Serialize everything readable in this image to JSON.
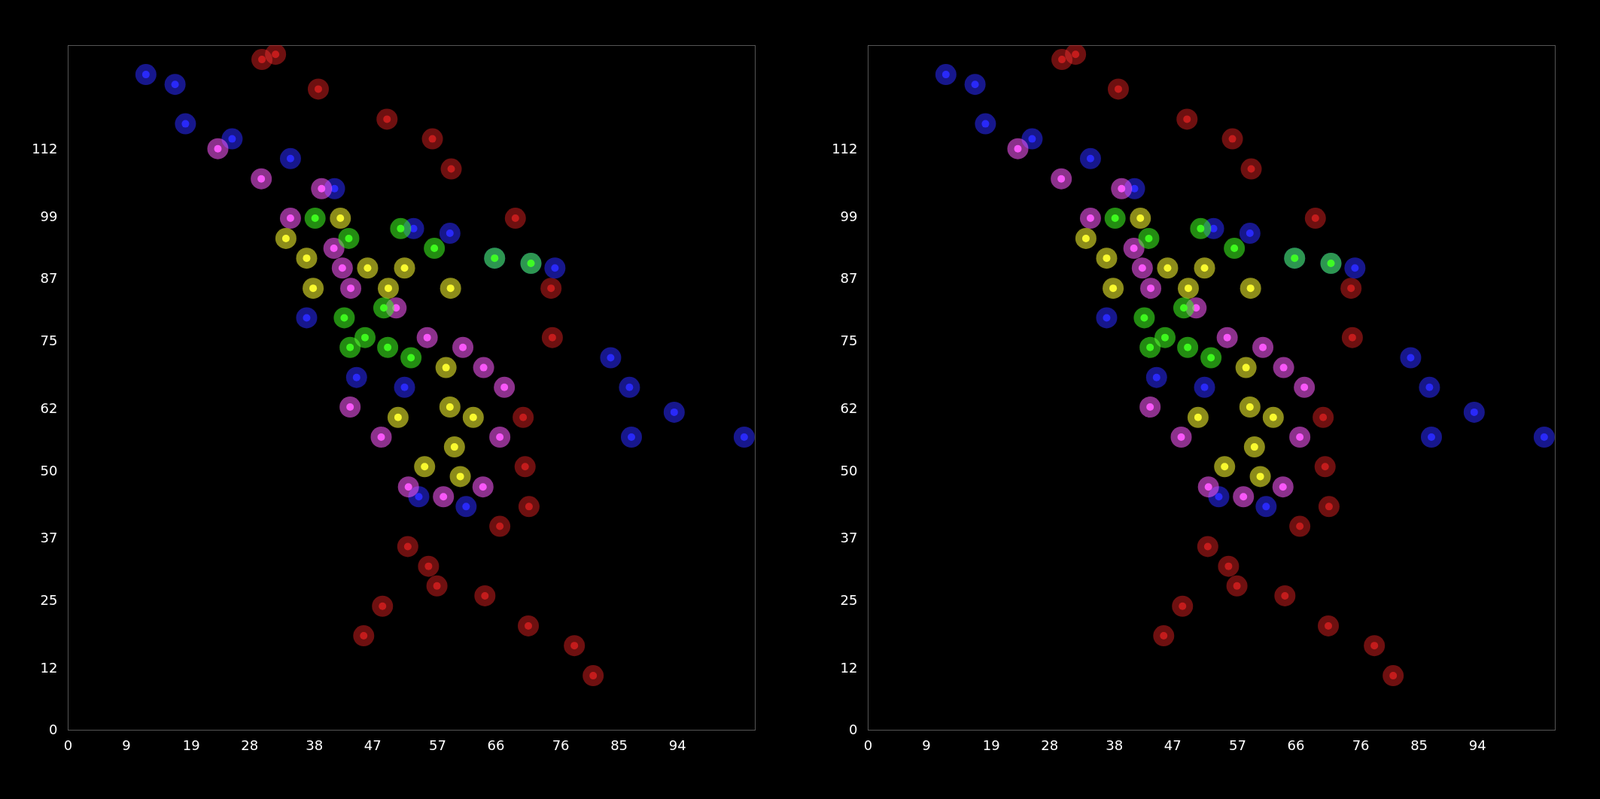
{
  "chart_data": [
    {
      "type": "scatter",
      "xlim": [
        0,
        106
      ],
      "xticks": [
        0,
        9,
        19,
        28,
        38,
        47,
        57,
        66,
        76,
        85,
        94
      ],
      "ylim": [
        0,
        132
      ],
      "yticks": [
        0,
        12,
        25,
        37,
        50,
        62,
        75,
        87,
        99,
        112
      ],
      "series": [
        {
          "color": "#c81e1e",
          "x": [
            32.0,
            38.6,
            49.2,
            59.1,
            69.0,
            74.5,
            74.7,
            70.2,
            70.5,
            66.6,
            52.4,
            48.5,
            56.9,
            64.3,
            71.0,
            78.1,
            81.0,
            55.6,
            45.6,
            29.9,
            56.2,
            71.1
          ],
          "y": [
            130.3,
            123.6,
            117.8,
            108.2,
            98.7,
            85.2,
            75.7,
            60.3,
            50.8,
            39.3,
            35.4,
            23.9,
            27.8,
            25.9,
            20.1,
            16.3,
            10.5,
            31.6,
            18.2,
            129.3,
            114.0,
            43.1
          ]
        },
        {
          "color": "#2a2aff",
          "x": [
            12.0,
            16.5,
            18.1,
            25.3,
            34.3,
            41.1,
            53.3,
            58.9,
            65.8,
            71.4,
            75.1,
            83.7,
            86.6,
            93.5,
            104.3,
            86.9,
            36.8,
            44.5,
            51.9,
            54.1,
            61.4
          ],
          "y": [
            126.4,
            124.5,
            116.9,
            114.0,
            110.2,
            104.4,
            96.7,
            95.8,
            91.0,
            90.0,
            89.1,
            71.8,
            66.1,
            61.3,
            56.5,
            56.5,
            79.5,
            68.0,
            66.1,
            45.0,
            43.1
          ]
        },
        {
          "color": "#ff5aff",
          "x": [
            23.1,
            29.8,
            34.3,
            41.0,
            43.6,
            50.6,
            55.4,
            60.9,
            64.1,
            67.3,
            66.6,
            64.0,
            57.9,
            52.5,
            48.3,
            43.5,
            42.3,
            39.1
          ],
          "y": [
            112.1,
            106.3,
            98.7,
            92.9,
            85.2,
            81.4,
            75.7,
            73.8,
            69.9,
            66.1,
            56.5,
            46.9,
            45.0,
            46.9,
            56.5,
            62.3,
            89.1,
            104.4
          ]
        },
        {
          "color": "#ffff30",
          "x": [
            33.6,
            36.8,
            42.0,
            46.2,
            51.9,
            59.0,
            58.3,
            58.9,
            62.5,
            59.6,
            50.9,
            49.4,
            37.8,
            55.0,
            60.5
          ],
          "y": [
            94.8,
            91.0,
            98.7,
            89.1,
            89.1,
            85.2,
            69.9,
            62.3,
            60.3,
            54.6,
            60.3,
            85.2,
            85.2,
            50.8,
            48.9
          ]
        },
        {
          "color": "#40ff20",
          "x": [
            38.1,
            43.3,
            51.3,
            56.5,
            65.8,
            71.4,
            42.6,
            45.8,
            49.3,
            52.9,
            43.5,
            48.7
          ],
          "y": [
            98.7,
            94.8,
            96.7,
            92.9,
            91.0,
            90.0,
            79.5,
            75.7,
            73.8,
            71.8,
            73.8,
            81.4
          ]
        }
      ]
    },
    {
      "type": "scatter",
      "xlim": [
        0,
        106
      ],
      "xticks": [
        0,
        9,
        19,
        28,
        38,
        47,
        57,
        66,
        76,
        85,
        94
      ],
      "ylim": [
        0,
        132
      ],
      "yticks": [
        0,
        12,
        25,
        37,
        50,
        62,
        75,
        87,
        99,
        112
      ],
      "series": [
        {
          "color": "#c81e1e",
          "x": [
            32.0,
            38.6,
            49.2,
            59.1,
            69.0,
            74.5,
            74.7,
            70.2,
            70.5,
            66.6,
            52.4,
            48.5,
            56.9,
            64.3,
            71.0,
            78.1,
            81.0,
            55.6,
            45.6,
            29.9,
            56.2,
            71.1
          ],
          "y": [
            130.3,
            123.6,
            117.8,
            108.2,
            98.7,
            85.2,
            75.7,
            60.3,
            50.8,
            39.3,
            35.4,
            23.9,
            27.8,
            25.9,
            20.1,
            16.3,
            10.5,
            31.6,
            18.2,
            129.3,
            114.0,
            43.1
          ]
        },
        {
          "color": "#2a2aff",
          "x": [
            12.0,
            16.5,
            18.1,
            25.3,
            34.3,
            41.1,
            53.3,
            58.9,
            65.8,
            71.4,
            75.1,
            83.7,
            86.6,
            93.5,
            104.3,
            86.9,
            36.8,
            44.5,
            51.9,
            54.1,
            61.4
          ],
          "y": [
            126.4,
            124.5,
            116.9,
            114.0,
            110.2,
            104.4,
            96.7,
            95.8,
            91.0,
            90.0,
            89.1,
            71.8,
            66.1,
            61.3,
            56.5,
            56.5,
            79.5,
            68.0,
            66.1,
            45.0,
            43.1
          ]
        },
        {
          "color": "#ff5aff",
          "x": [
            23.1,
            29.8,
            34.3,
            41.0,
            43.6,
            50.6,
            55.4,
            60.9,
            64.1,
            67.3,
            66.6,
            64.0,
            57.9,
            52.5,
            48.3,
            43.5,
            42.3,
            39.1
          ],
          "y": [
            112.1,
            106.3,
            98.7,
            92.9,
            85.2,
            81.4,
            75.7,
            73.8,
            69.9,
            66.1,
            56.5,
            46.9,
            45.0,
            46.9,
            56.5,
            62.3,
            89.1,
            104.4
          ]
        },
        {
          "color": "#ffff30",
          "x": [
            33.6,
            36.8,
            42.0,
            46.2,
            51.9,
            59.0,
            58.3,
            58.9,
            62.5,
            59.6,
            50.9,
            49.4,
            37.8,
            55.0,
            60.5
          ],
          "y": [
            94.8,
            91.0,
            98.7,
            89.1,
            89.1,
            85.2,
            69.9,
            62.3,
            60.3,
            54.6,
            60.3,
            85.2,
            85.2,
            50.8,
            48.9
          ]
        },
        {
          "color": "#40ff20",
          "x": [
            38.1,
            43.3,
            51.3,
            56.5,
            65.8,
            71.4,
            42.6,
            45.8,
            49.3,
            52.9,
            43.5,
            48.7
          ],
          "y": [
            98.7,
            94.8,
            96.7,
            92.9,
            91.0,
            90.0,
            79.5,
            75.7,
            73.8,
            71.8,
            73.8,
            81.4
          ]
        }
      ]
    }
  ]
}
